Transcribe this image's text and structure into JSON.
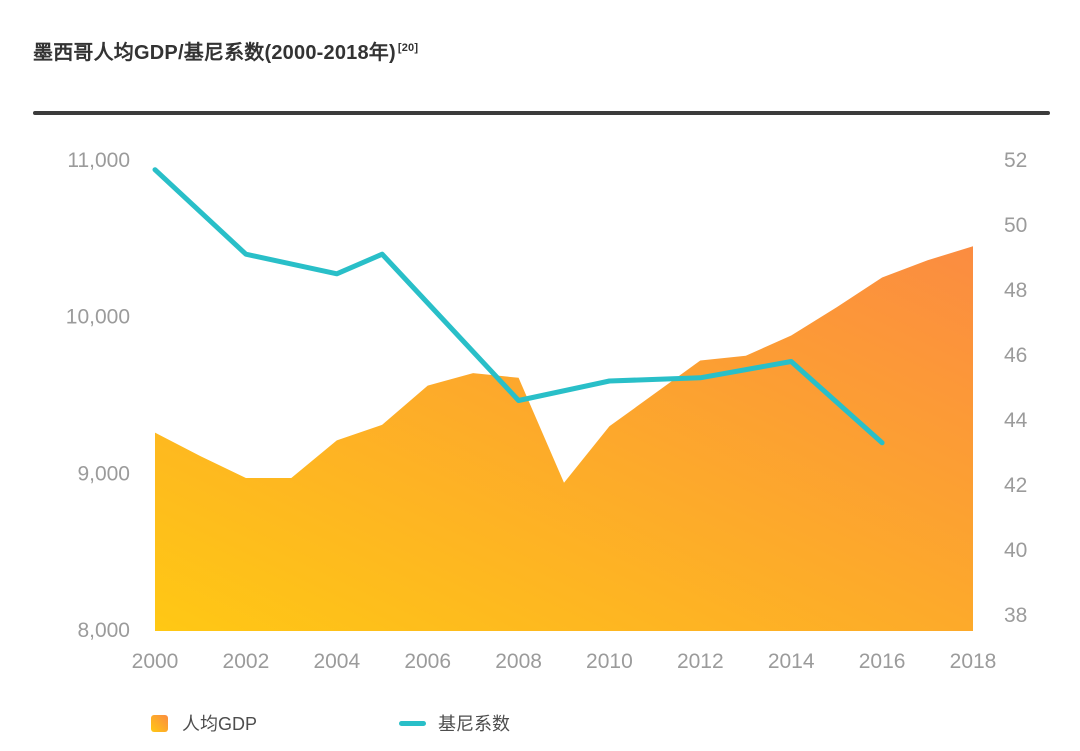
{
  "title": {
    "text": "墨西哥人均GDP/基尼系数(2000-2018年)",
    "reference": "[20]"
  },
  "colors": {
    "area_gradient_start": "#FFC814",
    "area_gradient_end": "#FB8C41",
    "gini_line": "#29BFC8",
    "axis_text": "#9B9B9B",
    "title_text": "#333333",
    "divider": "#3B3B3B",
    "legend_text": "#4D4D4D"
  },
  "chart_data": {
    "type": "combo",
    "title": "墨西哥人均GDP/基尼系数(2000-2018年)",
    "grid": false,
    "legend_position": "bottom",
    "x_axis": {
      "ticks": [
        2000,
        2002,
        2004,
        2006,
        2008,
        2010,
        2012,
        2014,
        2016,
        2018
      ],
      "range": [
        2000,
        2018
      ]
    },
    "left_axis": {
      "series": "人均GDP",
      "range": [
        8000,
        11000
      ],
      "ticks": [
        {
          "label": "11,000",
          "value": 11000
        },
        {
          "label": "10,000",
          "value": 10000
        },
        {
          "label": "9,000",
          "value": 9000
        },
        {
          "label": "8,000",
          "value": 8000
        }
      ]
    },
    "right_axis": {
      "series": "基尼系数",
      "range": [
        38,
        52
      ],
      "ticks": [
        {
          "label": "52",
          "value": 52
        },
        {
          "label": "50",
          "value": 50
        },
        {
          "label": "48",
          "value": 48
        },
        {
          "label": "46",
          "value": 46
        },
        {
          "label": "44",
          "value": 44
        },
        {
          "label": "42",
          "value": 42
        },
        {
          "label": "40",
          "value": 40
        },
        {
          "label": "38",
          "value": 38
        }
      ]
    },
    "series": [
      {
        "name": "人均GDP",
        "type": "area",
        "axis": "left",
        "x": [
          2000,
          2001,
          2002,
          2003,
          2004,
          2005,
          2006,
          2007,
          2008,
          2009,
          2010,
          2011,
          2012,
          2013,
          2014,
          2015,
          2016,
          2017,
          2018
        ],
        "values": [
          9260,
          9110,
          8970,
          8970,
          9210,
          9310,
          9560,
          9640,
          9610,
          8940,
          9300,
          9510,
          9720,
          9750,
          9880,
          10060,
          10250,
          10360,
          10450
        ]
      },
      {
        "name": "基尼系数",
        "type": "line",
        "axis": "right",
        "x": [
          2000,
          2002,
          2004,
          2005,
          2006,
          2008,
          2010,
          2012,
          2014,
          2016
        ],
        "values": [
          51.7,
          49.1,
          48.5,
          49.1,
          47.6,
          44.6,
          45.2,
          45.3,
          45.8,
          43.3
        ]
      }
    ]
  }
}
